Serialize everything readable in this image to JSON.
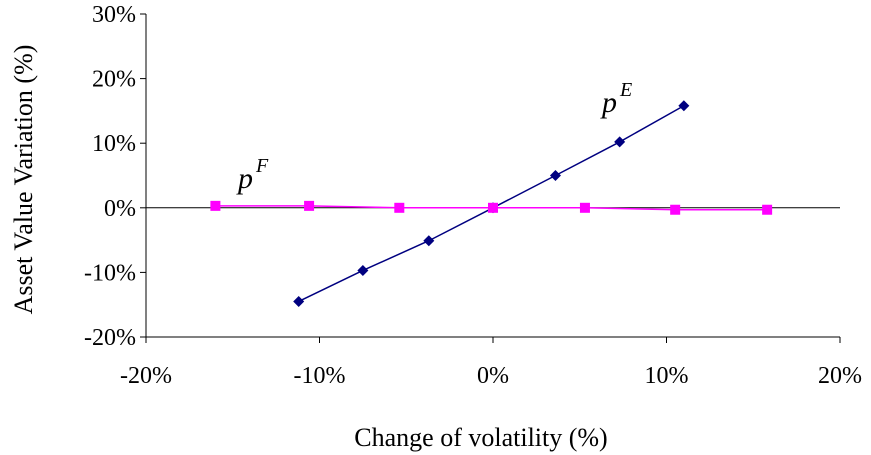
{
  "chart_data": {
    "type": "line",
    "xlabel": "Change of volatility (%)",
    "ylabel": "Asset Value Variation (%)",
    "xlim": [
      -20,
      20
    ],
    "ylim": [
      -20,
      30
    ],
    "x_ticks": [
      "-20%",
      "-10%",
      "0%",
      "10%",
      "20%"
    ],
    "y_ticks": [
      "30%",
      "20%",
      "10%",
      "0%",
      "-10%",
      "-20%"
    ],
    "x_tick_values": [
      -20,
      -10,
      0,
      10,
      20
    ],
    "y_tick_values": [
      30,
      20,
      10,
      0,
      -10,
      -20
    ],
    "grid": false,
    "legend": "none",
    "series": [
      {
        "label_base": "p",
        "label_sup": "E",
        "color": "#000080",
        "marker": "diamond",
        "x": [
          -11.2,
          -7.5,
          -3.7,
          0,
          3.6,
          7.3,
          11.0
        ],
        "y": [
          -14.5,
          -9.7,
          -5.1,
          0,
          5.0,
          10.2,
          15.8
        ]
      },
      {
        "label_base": "p",
        "label_sup": "F",
        "color": "#FF00FF",
        "marker": "square",
        "x": [
          -16.0,
          -10.6,
          -5.4,
          0,
          5.3,
          10.5,
          15.8
        ],
        "y": [
          0.3,
          0.3,
          0.0,
          0.0,
          0.0,
          -0.3,
          -0.3
        ]
      }
    ]
  }
}
